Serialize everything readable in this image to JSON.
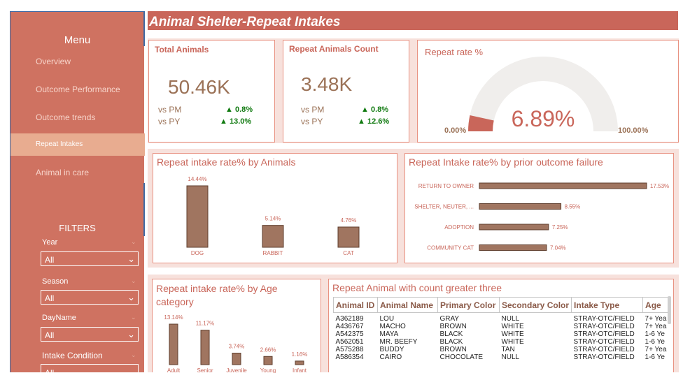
{
  "sidebar": {
    "menu_title": "Menu",
    "items": [
      {
        "label": "Overview"
      },
      {
        "label": "Outcome Performance"
      },
      {
        "label": "Outcome trends"
      },
      {
        "label": "Repeat Intakes"
      },
      {
        "label": "Animal in care"
      }
    ],
    "filters_title": "FILTERS",
    "filters": [
      {
        "label": "Year",
        "value": "All"
      },
      {
        "label": "Season",
        "value": "All"
      },
      {
        "label": "DayName",
        "value": "All"
      },
      {
        "label": "Intake Condition",
        "value": "All"
      }
    ]
  },
  "header": {
    "title": "Animal Shelter-Repeat Intakes"
  },
  "kpis": {
    "total": {
      "title": "Total Animals",
      "value": "50.46K",
      "vs_pm_label": "vs PM",
      "vs_pm": "0.8%",
      "vs_py_label": "vs PY",
      "vs_py": "13.0%"
    },
    "repeat": {
      "title": "Repeat Animals Count",
      "value": "3.48K",
      "vs_pm_label": "vs PM",
      "vs_pm": "0.8%",
      "vs_py_label": "vs PY",
      "vs_py": "12.6%"
    }
  },
  "gauge": {
    "title": "Repeat rate %",
    "value_label": "6.89%",
    "min_label": "0.00%",
    "max_label": "100.00%",
    "value": 6.89,
    "min": 0,
    "max": 100
  },
  "chart_data": [
    {
      "id": "by_animals",
      "type": "bar",
      "title": "Repeat intake rate% by Animals",
      "categories": [
        "DOG",
        "RABBIT",
        "CAT"
      ],
      "values": [
        14.44,
        5.14,
        4.76
      ],
      "labels": [
        "14.44%",
        "5.14%",
        "4.76%"
      ],
      "ylim": [
        0,
        14.44
      ]
    },
    {
      "id": "by_outcome",
      "type": "bar",
      "orientation": "horizontal",
      "title": "Repeat Intake rate% by prior outcome failure",
      "categories": [
        "RETURN TO OWNER",
        "SHELTER, NEUTER, ...",
        "ADOPTION",
        "COMMUNITY CAT"
      ],
      "values": [
        17.53,
        8.55,
        7.25,
        7.04
      ],
      "labels": [
        "17.53%",
        "8.55%",
        "7.25%",
        "7.04%"
      ],
      "xlim": [
        0,
        17.53
      ]
    },
    {
      "id": "by_age",
      "type": "bar",
      "title": "Repeat intake rate% by Age category",
      "categories": [
        "Adult",
        "Senior",
        "Juvenile",
        "Young",
        "Infant"
      ],
      "values": [
        13.14,
        11.17,
        3.74,
        2.66,
        1.16
      ],
      "labels": [
        "13.14%",
        "11.17%",
        "3.74%",
        "2.66%",
        "1.16%"
      ],
      "ylim": [
        0,
        13.14
      ]
    }
  ],
  "table": {
    "title": "Repeat Animal with count greater three",
    "columns": [
      "Animal ID",
      "Animal Name",
      "Primary Color",
      "Secondary Color",
      "Intake Type",
      "Age"
    ],
    "rows": [
      [
        "A362189",
        "LOU",
        "GRAY",
        "NULL",
        "STRAY-OTC/FIELD",
        "7+ Yea"
      ],
      [
        "A436767",
        "MACHO",
        "BROWN",
        "WHITE",
        "STRAY-OTC/FIELD",
        "7+ Yea"
      ],
      [
        "A542375",
        "MAYA",
        "BLACK",
        "WHITE",
        "STRAY-OTC/FIELD",
        "1-6 Ye"
      ],
      [
        "A562051",
        "MR. BEEFY",
        "BLACK",
        "WHITE",
        "STRAY-OTC/FIELD",
        "1-6 Ye"
      ],
      [
        "A575288",
        "BUDDY",
        "BROWN",
        "TAN",
        "STRAY-OTC/FIELD",
        "7+ Yea"
      ],
      [
        "A586354",
        "CAIRO",
        "CHOCOLATE",
        "NULL",
        "STRAY-OTC/FIELD",
        "1-6 Ye"
      ]
    ]
  },
  "colors": {
    "accent": "#c9665a",
    "bar": "#a07560",
    "bar_stroke": "#5e3d2c",
    "positive": "#107a10",
    "gauge_track": "#f0eeec"
  }
}
